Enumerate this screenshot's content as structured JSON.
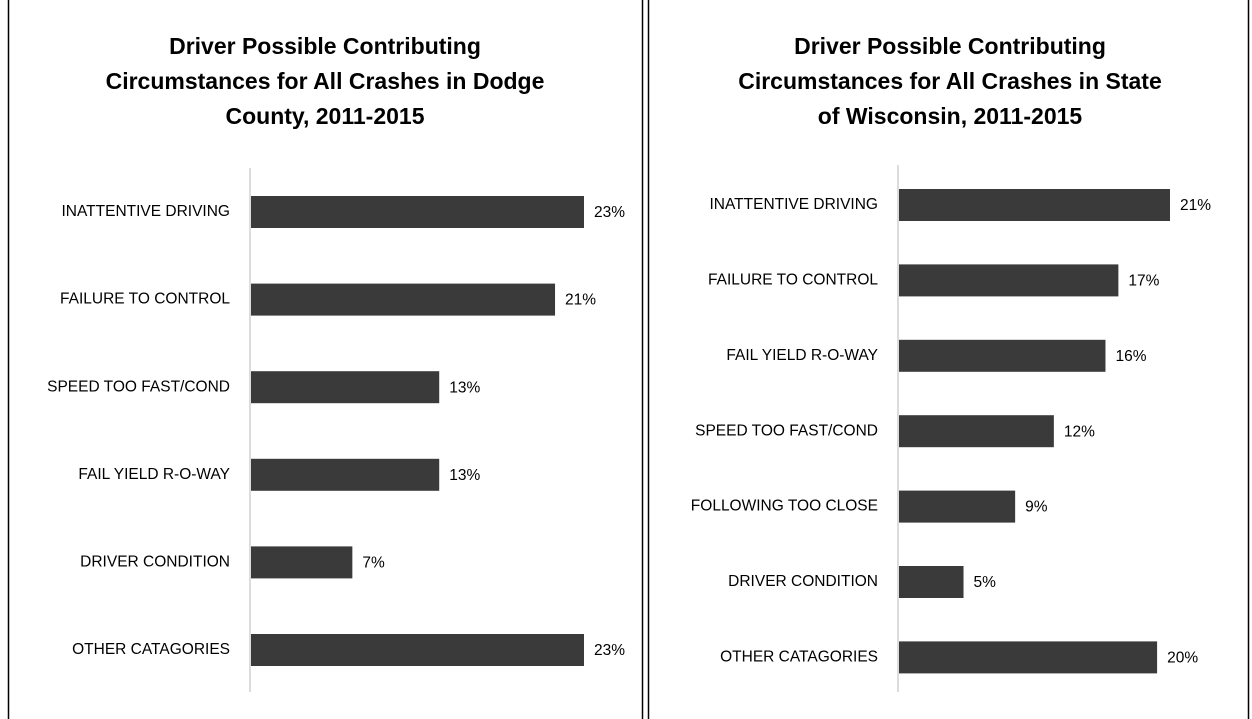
{
  "chart_data": [
    {
      "type": "bar",
      "orientation": "horizontal",
      "title": [
        "Driver Possible Contributing",
        "Circumstances for All Crashes in Dodge",
        "County, 2011-2015"
      ],
      "categories": [
        "INATTENTIVE DRIVING",
        "FAILURE TO CONTROL",
        "SPEED TOO FAST/COND",
        "FAIL YIELD R-O-WAY",
        "DRIVER CONDITION",
        "OTHER CATAGORIES"
      ],
      "values": [
        23,
        21,
        13,
        13,
        7,
        23
      ],
      "value_labels": [
        "23%",
        "21%",
        "13%",
        "13%",
        "7%",
        "23%"
      ],
      "color": "#3a3a3a"
    },
    {
      "type": "bar",
      "orientation": "horizontal",
      "title": [
        "Driver Possible Contributing",
        "Circumstances for All Crashes in State",
        "of Wisconsin, 2011-2015"
      ],
      "categories": [
        "INATTENTIVE DRIVING",
        "FAILURE TO CONTROL",
        "FAIL YIELD R-O-WAY",
        "SPEED TOO FAST/COND",
        "FOLLOWING TOO CLOSE",
        "DRIVER CONDITION",
        "OTHER CATAGORIES"
      ],
      "values": [
        21,
        17,
        16,
        12,
        9,
        5,
        20
      ],
      "value_labels": [
        "21%",
        "17%",
        "16%",
        "12%",
        "9%",
        "5%",
        "20%"
      ],
      "color": "#3a3a3a"
    }
  ]
}
